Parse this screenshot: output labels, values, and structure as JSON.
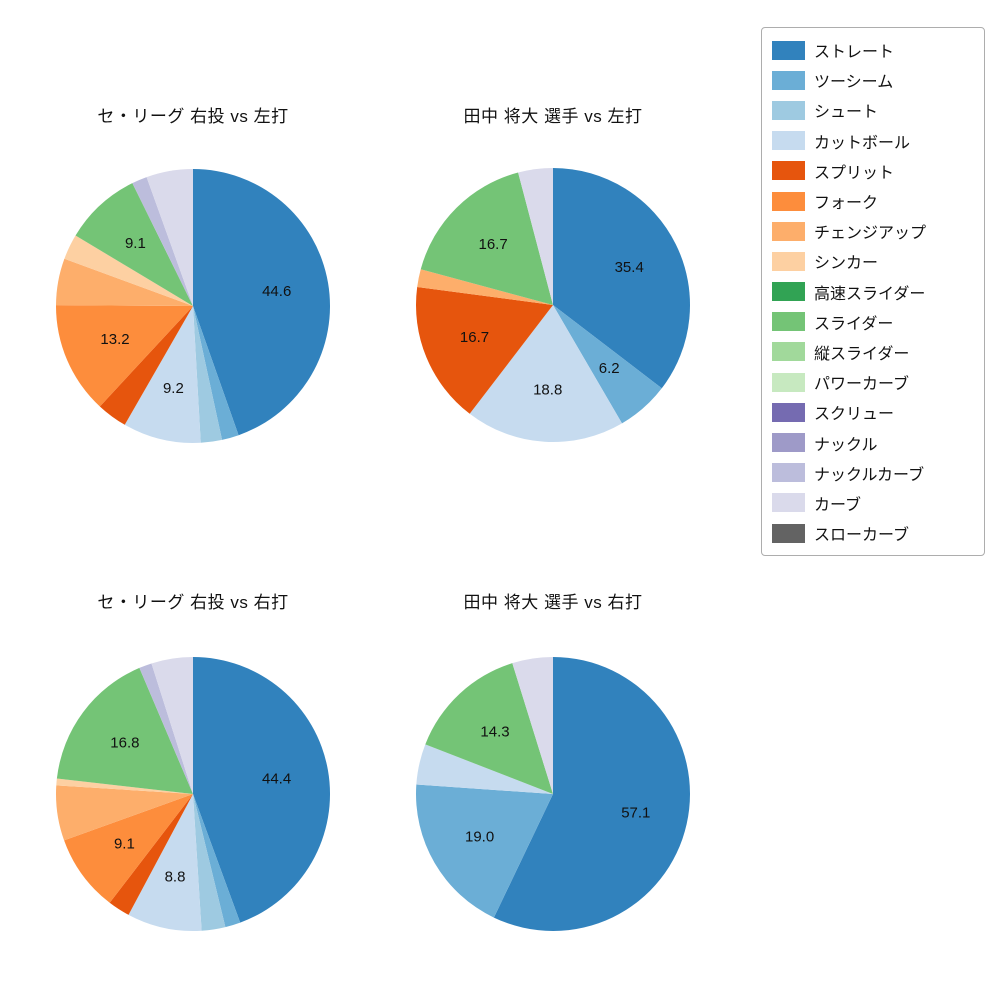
{
  "figure": {
    "background": "#ffffff"
  },
  "legend": {
    "items": [
      {
        "label": "ストレート",
        "color": "#3182bd"
      },
      {
        "label": "ツーシーム",
        "color": "#6baed6"
      },
      {
        "label": "シュート",
        "color": "#9ecae1"
      },
      {
        "label": "カットボール",
        "color": "#c6dbef"
      },
      {
        "label": "スプリット",
        "color": "#e6550d"
      },
      {
        "label": "フォーク",
        "color": "#fd8d3c"
      },
      {
        "label": "チェンジアップ",
        "color": "#fdae6b"
      },
      {
        "label": "シンカー",
        "color": "#fdd0a2"
      },
      {
        "label": "高速スライダー",
        "color": "#31a354"
      },
      {
        "label": "スライダー",
        "color": "#74c476"
      },
      {
        "label": "縦スライダー",
        "color": "#a1d99b"
      },
      {
        "label": "パワーカーブ",
        "color": "#c7e9c0"
      },
      {
        "label": "スクリュー",
        "color": "#756bb1"
      },
      {
        "label": "ナックル",
        "color": "#9e9ac8"
      },
      {
        "label": "ナックルカーブ",
        "color": "#bcbddc"
      },
      {
        "label": "カーブ",
        "color": "#dadaeb"
      },
      {
        "label": "スローカーブ",
        "color": "#636363"
      }
    ]
  },
  "chart_data": [
    {
      "type": "pie",
      "title": "セ・リーグ 右投 vs 左打",
      "start_angle_deg": 0,
      "direction": "clockwise",
      "slices": [
        {
          "name": "ストレート",
          "value": 44.6,
          "label": "44.6"
        },
        {
          "name": "ツーシーム",
          "value": 2.0,
          "label": null
        },
        {
          "name": "シュート",
          "value": 2.5,
          "label": null
        },
        {
          "name": "カットボール",
          "value": 9.2,
          "label": "9.2"
        },
        {
          "name": "スプリット",
          "value": 3.6,
          "label": null
        },
        {
          "name": "フォーク",
          "value": 13.2,
          "label": "13.2"
        },
        {
          "name": "チェンジアップ",
          "value": 5.5,
          "label": null
        },
        {
          "name": "シンカー",
          "value": 3.0,
          "label": null
        },
        {
          "name": "スライダー",
          "value": 9.1,
          "label": "9.1"
        },
        {
          "name": "ナックルカーブ",
          "value": 1.8,
          "label": null
        },
        {
          "name": "カーブ",
          "value": 5.5,
          "label": null
        }
      ]
    },
    {
      "type": "pie",
      "title": "田中 将大 選手 vs 左打",
      "start_angle_deg": 0,
      "direction": "clockwise",
      "slices": [
        {
          "name": "ストレート",
          "value": 35.4,
          "label": "35.4"
        },
        {
          "name": "ツーシーム",
          "value": 6.2,
          "label": "6.2"
        },
        {
          "name": "カットボール",
          "value": 18.8,
          "label": "18.8"
        },
        {
          "name": "スプリット",
          "value": 16.7,
          "label": "16.7"
        },
        {
          "name": "チェンジアップ",
          "value": 2.1,
          "label": null
        },
        {
          "name": "スライダー",
          "value": 16.7,
          "label": "16.7"
        },
        {
          "name": "カーブ",
          "value": 4.1,
          "label": null
        }
      ]
    },
    {
      "type": "pie",
      "title": "セ・リーグ 右投 vs 右打",
      "start_angle_deg": 0,
      "direction": "clockwise",
      "slices": [
        {
          "name": "ストレート",
          "value": 44.4,
          "label": "44.4"
        },
        {
          "name": "ツーシーム",
          "value": 1.8,
          "label": null
        },
        {
          "name": "シュート",
          "value": 2.8,
          "label": null
        },
        {
          "name": "カットボール",
          "value": 8.8,
          "label": "8.8"
        },
        {
          "name": "スプリット",
          "value": 2.6,
          "label": null
        },
        {
          "name": "フォーク",
          "value": 9.1,
          "label": "9.1"
        },
        {
          "name": "チェンジアップ",
          "value": 6.5,
          "label": null
        },
        {
          "name": "シンカー",
          "value": 0.8,
          "label": null
        },
        {
          "name": "スライダー",
          "value": 16.8,
          "label": "16.8"
        },
        {
          "name": "ナックルカーブ",
          "value": 1.5,
          "label": null
        },
        {
          "name": "カーブ",
          "value": 4.9,
          "label": null
        }
      ]
    },
    {
      "type": "pie",
      "title": "田中 将大 選手 vs 右打",
      "start_angle_deg": 0,
      "direction": "clockwise",
      "slices": [
        {
          "name": "ストレート",
          "value": 57.1,
          "label": "57.1"
        },
        {
          "name": "ツーシーム",
          "value": 19.0,
          "label": "19.0"
        },
        {
          "name": "カットボール",
          "value": 4.8,
          "label": null
        },
        {
          "name": "スライダー",
          "value": 14.3,
          "label": "14.3"
        },
        {
          "name": "カーブ",
          "value": 4.8,
          "label": null
        }
      ]
    }
  ]
}
